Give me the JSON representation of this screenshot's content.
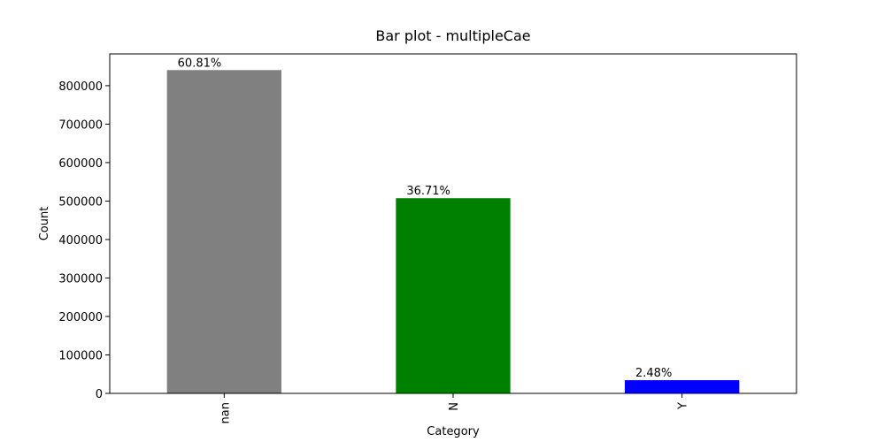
{
  "chart_data": {
    "type": "bar",
    "title": "Bar plot - multipleCae",
    "x_label": "Category",
    "y_label": "Count",
    "categories": [
      "nan",
      "N",
      "Y"
    ],
    "values": [
      840500,
      507400,
      34300
    ],
    "annotations": [
      "60.81%",
      "36.71%",
      "2.48%"
    ],
    "colors": [
      "#808080",
      "#008000",
      "#0000ff"
    ],
    "ylim": [
      0,
      882500
    ],
    "yticks": [
      0,
      100000,
      200000,
      300000,
      400000,
      500000,
      600000,
      700000,
      800000
    ],
    "grid": false
  }
}
